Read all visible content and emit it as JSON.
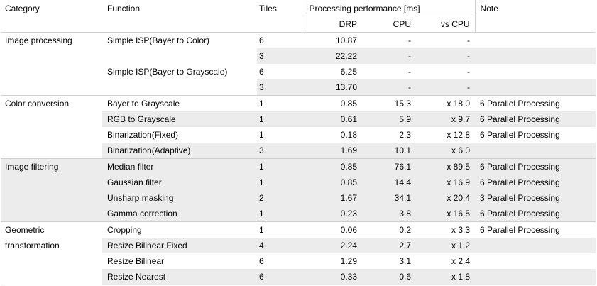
{
  "headers": {
    "category": "Category",
    "function": "Function",
    "tiles": "Tiles",
    "performance_group": "Processing performance [ms]",
    "drp": "DRP",
    "cpu": "CPU",
    "vs_cpu": "vs CPU",
    "note": "Note"
  },
  "rows": [
    {
      "category": "Image processing",
      "function": "Simple ISP(Bayer to Color)",
      "tiles": "6",
      "drp": "10.87",
      "cpu": "-",
      "vs": "-",
      "note": ""
    },
    {
      "category": "",
      "function": "",
      "tiles": "3",
      "drp": "22.22",
      "cpu": "-",
      "vs": "-",
      "note": ""
    },
    {
      "category": "",
      "function": "Simple ISP(Bayer to Grayscale)",
      "tiles": "6",
      "drp": "6.25",
      "cpu": "-",
      "vs": "-",
      "note": ""
    },
    {
      "category": "",
      "function": "",
      "tiles": "3",
      "drp": "13.70",
      "cpu": "-",
      "vs": "-",
      "note": ""
    },
    {
      "category": "Color conversion",
      "function": "Bayer to Grayscale",
      "tiles": "1",
      "drp": "0.85",
      "cpu": "15.3",
      "vs": "x 18.0",
      "note": "6 Parallel Processing"
    },
    {
      "category": "",
      "function": "RGB to Grayscale",
      "tiles": "1",
      "drp": "0.61",
      "cpu": "5.9",
      "vs": "x  9.7",
      "note": "6 Parallel Processing"
    },
    {
      "category": "",
      "function": "Binarization(Fixed)",
      "tiles": "1",
      "drp": "0.18",
      "cpu": "2.3",
      "vs": "x 12.8",
      "note": "6 Parallel Processing"
    },
    {
      "category": "",
      "function": "Binarization(Adaptive)",
      "tiles": "3",
      "drp": "1.69",
      "cpu": "10.1",
      "vs": "x  6.0",
      "note": ""
    },
    {
      "category": "Image filtering",
      "function": "Median filter",
      "tiles": "1",
      "drp": "0.85",
      "cpu": "76.1",
      "vs": "x 89.5",
      "note": "6 Parallel Processing"
    },
    {
      "category": "",
      "function": "Gaussian filter",
      "tiles": "1",
      "drp": "0.85",
      "cpu": "14.4",
      "vs": "x 16.9",
      "note": "6 Parallel Processing"
    },
    {
      "category": "",
      "function": "Unsharp masking",
      "tiles": "2",
      "drp": "1.67",
      "cpu": "34.1",
      "vs": "x 20.4",
      "note": "3 Parallel Processing"
    },
    {
      "category": "",
      "function": "Gamma correction",
      "tiles": "1",
      "drp": "0.23",
      "cpu": "3.8",
      "vs": "x 16.5",
      "note": "6 Parallel Processing"
    },
    {
      "category": "Geometric",
      "function": "Cropping",
      "tiles": "1",
      "drp": "0.06",
      "cpu": "0.2",
      "vs": "x  3.3",
      "note": "6 Parallel Processing"
    },
    {
      "category": "transformation",
      "function": "Resize Bilinear Fixed",
      "tiles": "4",
      "drp": "2.24",
      "cpu": "2.7",
      "vs": "x  1.2",
      "note": ""
    },
    {
      "category": "",
      "function": "Resize Bilinear",
      "tiles": "6",
      "drp": "1.29",
      "cpu": "3.1",
      "vs": "x  2.4",
      "note": ""
    },
    {
      "category": "",
      "function": "Resize Nearest",
      "tiles": "6",
      "drp": "0.33",
      "cpu": "0.6",
      "vs": "x  1.8",
      "note": ""
    }
  ]
}
